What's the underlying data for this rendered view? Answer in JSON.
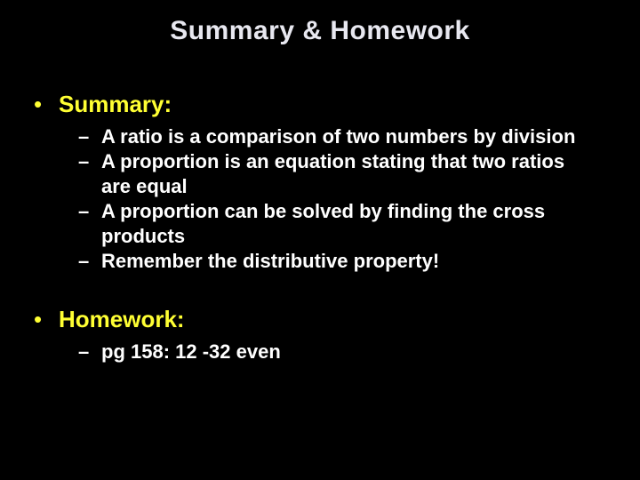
{
  "slide": {
    "background_color": "#000000",
    "title": {
      "text": "Summary & Homework",
      "color": "#e8e8f0",
      "fontsize": 30,
      "fontweight": "bold",
      "align": "center"
    },
    "sections": [
      {
        "heading": "Summary:",
        "heading_color": "#ffff33",
        "heading_fontsize": 26,
        "bullet_glyph": "•",
        "items": [
          "A ratio is a comparison of two numbers by division",
          "A proportion is an equation stating that two ratios are equal",
          "A proportion can be solved by finding the cross products",
          "Remember the distributive property!"
        ],
        "item_dash": "–",
        "item_color": "#ffffff",
        "item_fontsize": 22,
        "item_fontweight": "bold"
      },
      {
        "heading": "Homework:",
        "heading_color": "#ffff33",
        "heading_fontsize": 26,
        "bullet_glyph": "•",
        "items": [
          "pg 158:  12 -32 even"
        ],
        "item_dash": "–",
        "item_color": "#ffffff",
        "item_fontsize": 22,
        "item_fontweight": "bold"
      }
    ]
  }
}
